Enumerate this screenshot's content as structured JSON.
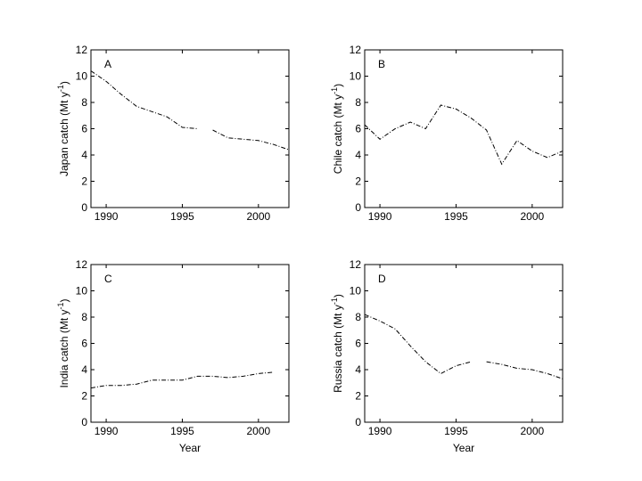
{
  "chart_data": [
    {
      "type": "line",
      "panel_letter": "A",
      "ylabel_prefix": "Japan catch (Mt y",
      "ylabel_sup": "-1",
      "ylabel_suffix": ")",
      "xlabel": "",
      "xlim": [
        1989,
        2002
      ],
      "ylim": [
        0,
        12
      ],
      "xticks": [
        1990,
        1995,
        2000
      ],
      "yticks": [
        0,
        2,
        4,
        6,
        8,
        10,
        12
      ],
      "series": [
        {
          "segments": [
            [
              [
                1989,
                10.4
              ],
              [
                1990,
                9.6
              ],
              [
                1991,
                8.6
              ],
              [
                1992,
                7.7
              ],
              [
                1993,
                7.3
              ],
              [
                1994,
                6.9
              ],
              [
                1995,
                6.1
              ],
              [
                1996,
                6.0
              ]
            ],
            [
              [
                1997,
                5.9
              ],
              [
                1998,
                5.3
              ],
              [
                1999,
                5.2
              ],
              [
                2000,
                5.1
              ],
              [
                2001,
                4.8
              ],
              [
                2002,
                4.4
              ]
            ]
          ]
        }
      ]
    },
    {
      "type": "line",
      "panel_letter": "B",
      "ylabel_prefix": "Chile catch (Mt y",
      "ylabel_sup": "-1",
      "ylabel_suffix": ")",
      "xlabel": "",
      "xlim": [
        1989,
        2002
      ],
      "ylim": [
        0,
        12
      ],
      "xticks": [
        1990,
        1995,
        2000
      ],
      "yticks": [
        0,
        2,
        4,
        6,
        8,
        10,
        12
      ],
      "series": [
        {
          "segments": [
            [
              [
                1989,
                6.3
              ],
              [
                1990,
                5.2
              ],
              [
                1991,
                6.0
              ],
              [
                1992,
                6.5
              ],
              [
                1993,
                6.0
              ],
              [
                1994,
                7.8
              ],
              [
                1995,
                7.5
              ],
              [
                1996,
                6.8
              ],
              [
                1997,
                5.9
              ],
              [
                1998,
                3.3
              ],
              [
                1999,
                5.1
              ],
              [
                2000,
                4.3
              ],
              [
                2001,
                3.8
              ],
              [
                2002,
                4.3
              ]
            ]
          ]
        }
      ]
    },
    {
      "type": "line",
      "panel_letter": "C",
      "ylabel_prefix": "India catch (Mt y",
      "ylabel_sup": "-1",
      "ylabel_suffix": ")",
      "xlabel": "Year",
      "xlim": [
        1989,
        2002
      ],
      "ylim": [
        0,
        12
      ],
      "xticks": [
        1990,
        1995,
        2000
      ],
      "yticks": [
        0,
        2,
        4,
        6,
        8,
        10,
        12
      ],
      "series": [
        {
          "segments": [
            [
              [
                1989,
                2.6
              ],
              [
                1990,
                2.8
              ],
              [
                1991,
                2.8
              ],
              [
                1992,
                2.9
              ],
              [
                1993,
                3.2
              ],
              [
                1994,
                3.2
              ],
              [
                1995,
                3.2
              ],
              [
                1996,
                3.5
              ],
              [
                1997,
                3.5
              ],
              [
                1998,
                3.4
              ],
              [
                1999,
                3.5
              ],
              [
                2000,
                3.7
              ],
              [
                2001,
                3.8
              ]
            ]
          ]
        }
      ]
    },
    {
      "type": "line",
      "panel_letter": "D",
      "ylabel_prefix": "Russia catch (Mt y",
      "ylabel_sup": "-1",
      "ylabel_suffix": ")",
      "xlabel": "Year",
      "xlim": [
        1989,
        2002
      ],
      "ylim": [
        0,
        12
      ],
      "xticks": [
        1990,
        1995,
        2000
      ],
      "yticks": [
        0,
        2,
        4,
        6,
        8,
        10,
        12
      ],
      "series": [
        {
          "segments": [
            [
              [
                1989,
                8.2
              ],
              [
                1990,
                7.7
              ],
              [
                1991,
                7.1
              ],
              [
                1992,
                5.8
              ],
              [
                1993,
                4.6
              ],
              [
                1994,
                3.7
              ],
              [
                1995,
                4.3
              ],
              [
                1996,
                4.6
              ]
            ],
            [
              [
                1997,
                4.6
              ],
              [
                1998,
                4.4
              ],
              [
                1999,
                4.1
              ],
              [
                2000,
                4.0
              ],
              [
                2001,
                3.7
              ],
              [
                2002,
                3.3
              ]
            ]
          ]
        }
      ]
    }
  ]
}
